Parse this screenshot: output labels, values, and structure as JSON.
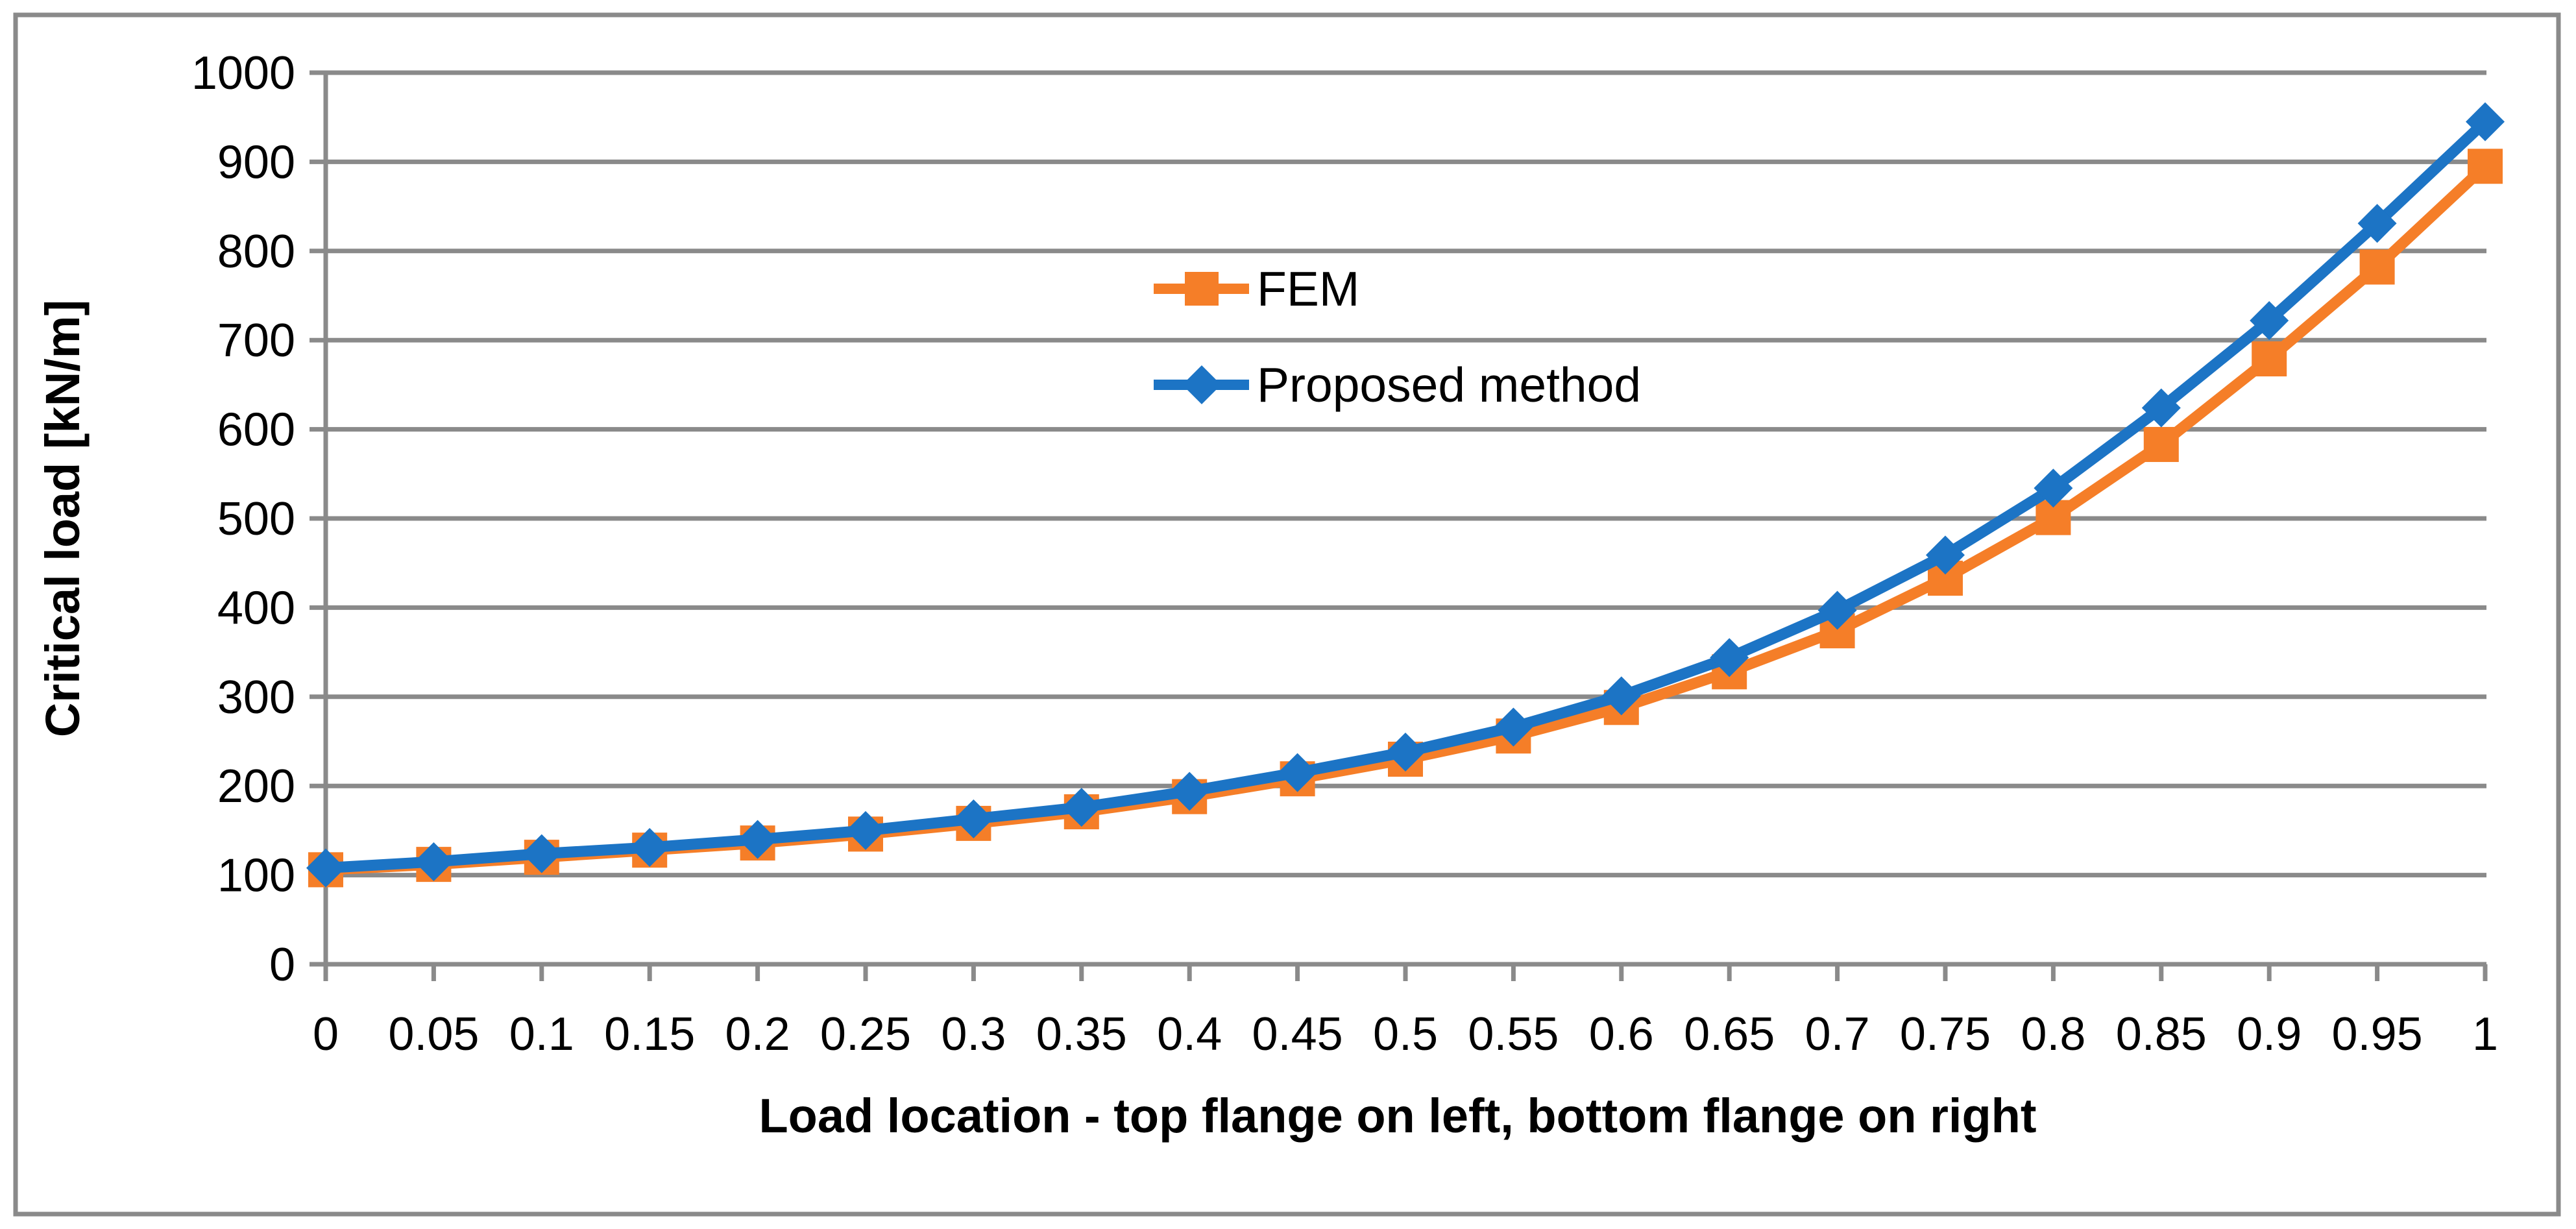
{
  "chart_data": {
    "type": "line",
    "title": "",
    "xlabel": "Load location - top flange on left, bottom flange on right",
    "ylabel": "Critical load [kN/m]",
    "x": [
      0,
      0.05,
      0.1,
      0.15,
      0.2,
      0.25,
      0.3,
      0.35,
      0.4,
      0.45,
      0.5,
      0.55,
      0.6,
      0.65,
      0.7,
      0.75,
      0.8,
      0.85,
      0.9,
      0.95,
      1
    ],
    "x_tick_labels": [
      "0",
      "0.05",
      "0.1",
      "0.15",
      "0.2",
      "0.25",
      "0.3",
      "0.35",
      "0.4",
      "0.45",
      "0.5",
      "0.55",
      "0.6",
      "0.65",
      "0.7",
      "0.75",
      "0.8",
      "0.85",
      "0.9",
      "0.95",
      "1"
    ],
    "y_tick_labels": [
      "0",
      "100",
      "200",
      "300",
      "400",
      "500",
      "600",
      "700",
      "800",
      "900",
      "1000"
    ],
    "xlim": [
      0,
      1
    ],
    "ylim": [
      0,
      1000
    ],
    "y_tick_step": 100,
    "x_tick_step": 0.05,
    "grid": "horizontal",
    "legend_position": "inside-top-center",
    "series": [
      {
        "name": "FEM",
        "marker": "square",
        "color": "#F57E28",
        "values": [
          106,
          112,
          120,
          128,
          136,
          146,
          158,
          171,
          188,
          208,
          230,
          256,
          288,
          328,
          374,
          433,
          501,
          583,
          679,
          782,
          895
        ]
      },
      {
        "name": "Proposed method",
        "marker": "diamond",
        "color": "#1C74C5",
        "values": [
          108,
          115,
          124,
          131,
          140,
          150,
          163,
          176,
          194,
          215,
          238,
          266,
          301,
          344,
          397,
          459,
          534,
          624,
          722,
          831,
          945
        ]
      }
    ],
    "colors": {
      "grid": "#8A8A8A",
      "axis": "#8A8A8A",
      "border": "#8A8A8A",
      "text": "#000000",
      "background": "#FFFFFF"
    }
  }
}
